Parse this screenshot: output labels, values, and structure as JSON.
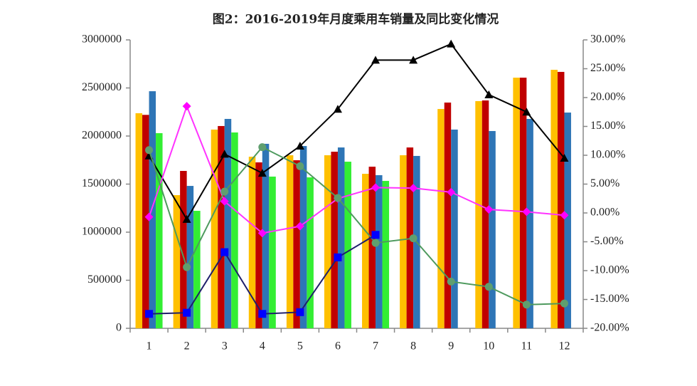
{
  "chart_data": {
    "type": "bar",
    "title": "图2：2016-2019年月度乘用车销量及同比变化情况",
    "categories": [
      "1",
      "2",
      "3",
      "4",
      "5",
      "6",
      "7",
      "8",
      "9",
      "10",
      "11",
      "12"
    ],
    "ylim": [
      0,
      3000000
    ],
    "yticks": [
      0,
      500000,
      1000000,
      1500000,
      2000000,
      2500000,
      3000000
    ],
    "y2lim": [
      -20,
      30
    ],
    "y2ticks": [
      {
        "value": -20,
        "label": "-20.00%"
      },
      {
        "value": -15,
        "label": "-15.00%"
      },
      {
        "value": -10,
        "label": "-10.00%"
      },
      {
        "value": -5,
        "label": "-5.00%"
      },
      {
        "value": 0,
        "label": "0.00%"
      },
      {
        "value": 5,
        "label": "5.00%"
      },
      {
        "value": 10,
        "label": "10.00%"
      },
      {
        "value": 15,
        "label": "15.00%"
      },
      {
        "value": 20,
        "label": "20.00%"
      },
      {
        "value": 25,
        "label": "25.00%"
      },
      {
        "value": 30,
        "label": "30.00%"
      }
    ],
    "series": [
      {
        "type": "bar",
        "color": "#ffc000",
        "values": [
          2237000,
          1385000,
          2067000,
          1785000,
          1800000,
          1800000,
          1607000,
          1800000,
          2281000,
          2363000,
          2607000,
          2689000
        ]
      },
      {
        "type": "bar",
        "color": "#c00000",
        "values": [
          2220000,
          1637000,
          2104000,
          1726000,
          1748000,
          1837000,
          1681000,
          1881000,
          2348000,
          2370000,
          2607000,
          2667000
        ]
      },
      {
        "type": "bar",
        "color": "#2e75b6",
        "values": [
          2466000,
          1481000,
          2178000,
          1919000,
          1896000,
          1881000,
          1593000,
          1793000,
          2067000,
          2052000,
          2178000,
          2244000
        ]
      },
      {
        "type": "bar",
        "color": "#33ee33",
        "values": [
          2030000,
          1222000,
          2037000,
          1578000,
          1570000,
          1733000,
          1533000,
          null,
          null,
          null,
          null,
          null
        ]
      },
      {
        "type": "line",
        "axis": "y2",
        "color": "#000000",
        "marker": "triangle",
        "marker_color": "#000000",
        "values": [
          9.9,
          -1.1,
          10.2,
          6.9,
          11.6,
          18.0,
          26.5,
          26.5,
          29.3,
          20.5,
          17.5,
          9.5
        ]
      },
      {
        "type": "line",
        "axis": "y2",
        "color": "#ff33ff",
        "marker": "diamond",
        "marker_color": "#ff00ff",
        "values": [
          -0.7,
          18.5,
          2.0,
          -3.5,
          -2.3,
          2.5,
          4.4,
          4.3,
          3.6,
          0.6,
          0.2,
          -0.4
        ]
      },
      {
        "type": "line",
        "axis": "y2",
        "color": "#4e9a5e",
        "marker": "circle",
        "marker_color": "#5f9f6f",
        "values": [
          10.9,
          -9.4,
          3.7,
          11.4,
          8.1,
          2.6,
          -5.2,
          -4.4,
          -11.9,
          -12.8,
          -15.9,
          -15.7
        ]
      },
      {
        "type": "line",
        "axis": "y2",
        "color": "#1f1f6b",
        "marker": "square",
        "marker_color": "#0000ff",
        "values": [
          -17.5,
          -17.3,
          -6.8,
          -17.5,
          -17.2,
          -7.7,
          -3.8,
          null,
          null,
          null,
          null,
          null
        ]
      }
    ]
  }
}
